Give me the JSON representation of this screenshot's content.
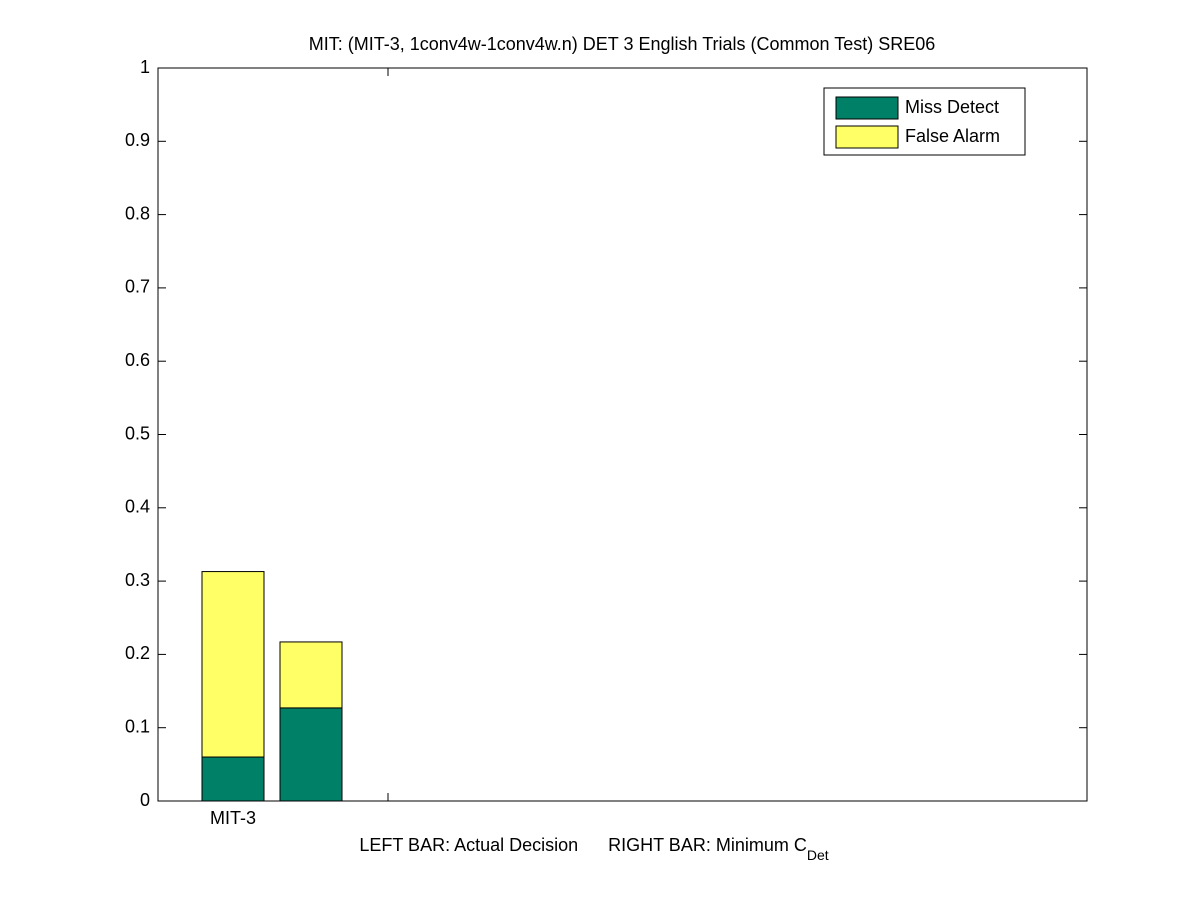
{
  "chart_data": {
    "type": "stacked_bar",
    "title": "MIT: (MIT-3, 1conv4w-1conv4w.n) DET 3 English Trials (Common Test) SRE06",
    "xlabel": [
      "LEFT BAR: Actual Decision",
      "RIGHT BAR: Minimum C",
      "Det"
    ],
    "categories": [
      "MIT-3",
      null
    ],
    "series": [
      {
        "name": "Miss Detect",
        "color": "#008066",
        "values": [
          0.06,
          0.127
        ]
      },
      {
        "name": "False Alarm",
        "color": "#ffff66",
        "values": [
          0.253,
          0.09
        ]
      }
    ],
    "ylim": [
      0,
      1
    ],
    "yticks": [
      0,
      0.1,
      0.2,
      0.3,
      0.4,
      0.5,
      0.6,
      0.7,
      0.8,
      0.9,
      1
    ],
    "legend": "upper right",
    "grid": false
  }
}
